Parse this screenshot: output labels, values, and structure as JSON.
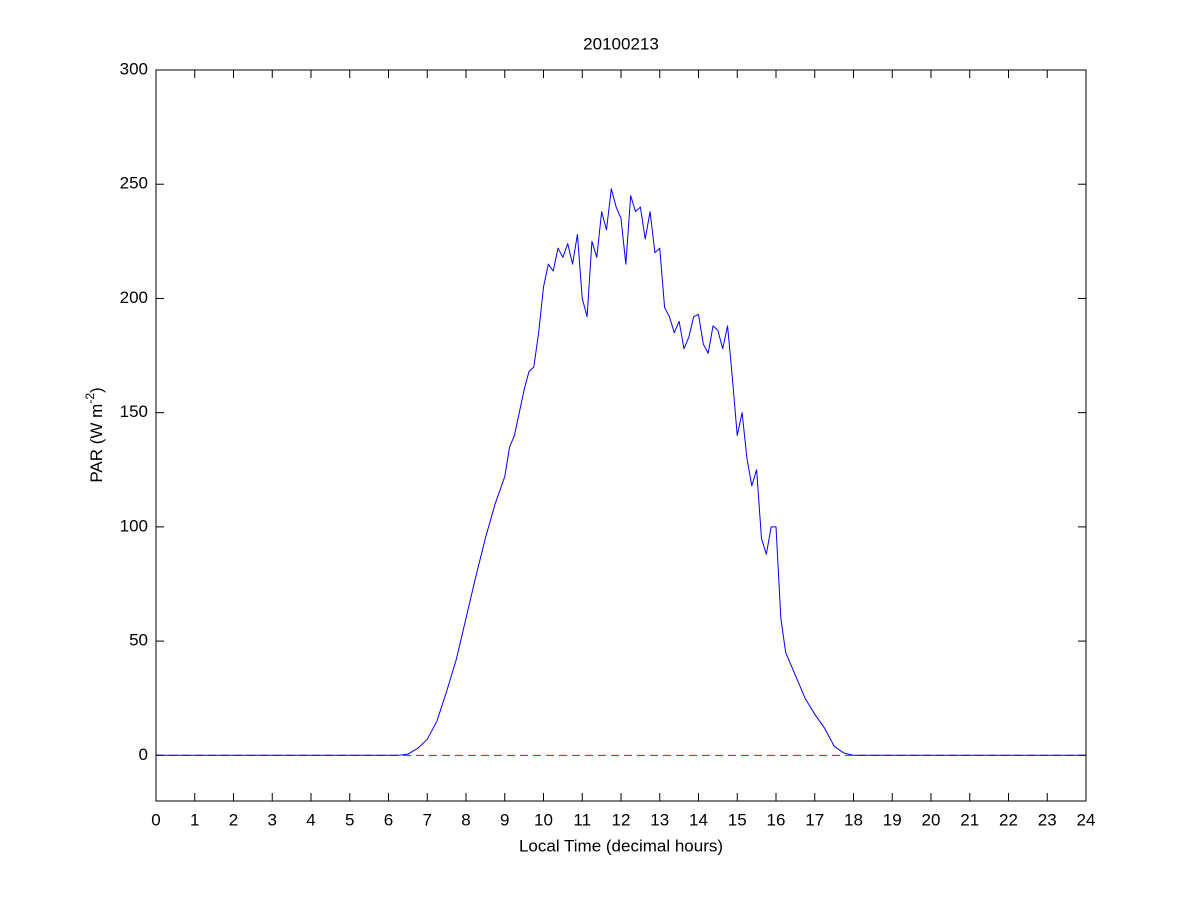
{
  "chart_data": {
    "type": "line",
    "title": "20100213",
    "x_label": "Local Time (decimal hours)",
    "y_label_parts": [
      "PAR (W m",
      "-2",
      ")"
    ],
    "xlim": [
      0,
      24
    ],
    "ylim": [
      -20,
      300
    ],
    "xticks": [
      0,
      1,
      2,
      3,
      4,
      5,
      6,
      7,
      8,
      9,
      10,
      11,
      12,
      13,
      14,
      15,
      16,
      17,
      18,
      19,
      20,
      21,
      22,
      23,
      24
    ],
    "yticks": [
      0,
      50,
      100,
      150,
      200,
      250,
      300
    ],
    "grid": false,
    "reference_line": {
      "y": 0,
      "color": "#ff0000",
      "dashed": true
    },
    "series": [
      {
        "name": "PAR",
        "color": "#0000ff",
        "x": [
          0,
          6.25,
          6.5,
          6.75,
          7.0,
          7.25,
          7.5,
          7.75,
          8.0,
          8.25,
          8.5,
          8.75,
          9.0,
          9.125,
          9.25,
          9.5,
          9.625,
          9.75,
          9.875,
          10.0,
          10.125,
          10.25,
          10.375,
          10.5,
          10.625,
          10.75,
          10.875,
          11.0,
          11.125,
          11.25,
          11.375,
          11.5,
          11.625,
          11.75,
          11.875,
          12.0,
          12.125,
          12.25,
          12.375,
          12.5,
          12.625,
          12.75,
          12.875,
          13.0,
          13.125,
          13.25,
          13.375,
          13.5,
          13.625,
          13.75,
          13.875,
          14.0,
          14.125,
          14.25,
          14.375,
          14.5,
          14.625,
          14.75,
          14.875,
          15.0,
          15.125,
          15.25,
          15.375,
          15.5,
          15.625,
          15.75,
          15.875,
          16.0,
          16.125,
          16.25,
          16.5,
          16.75,
          17.0,
          17.25,
          17.5,
          17.75,
          18.0,
          24
        ],
        "values": [
          0,
          0,
          0.5,
          3,
          7,
          15,
          28,
          42,
          60,
          78,
          95,
          110,
          122,
          135,
          140,
          160,
          168,
          170,
          185,
          205,
          215,
          212,
          222,
          218,
          224,
          215,
          228,
          200,
          192,
          225,
          218,
          238,
          230,
          248,
          240,
          235,
          215,
          245,
          238,
          240,
          226,
          238,
          220,
          222,
          196,
          192,
          185,
          190,
          178,
          183,
          192,
          193,
          180,
          176,
          188,
          186,
          178,
          188,
          165,
          140,
          150,
          130,
          118,
          125,
          95,
          88,
          100,
          100,
          60,
          45,
          35,
          25,
          18,
          12,
          4,
          1,
          0,
          0
        ]
      }
    ]
  }
}
